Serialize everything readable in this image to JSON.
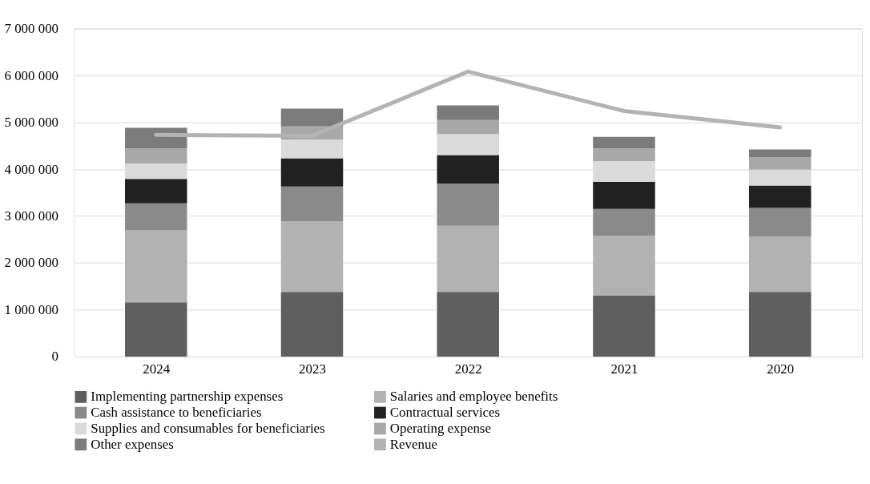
{
  "chart_data": {
    "type": "bar",
    "stacked": true,
    "categories": [
      "2024",
      "2023",
      "2022",
      "2021",
      "2020"
    ],
    "series": [
      {
        "name": "Implementing partnership expenses",
        "color": "#5f5f5f",
        "values": [
          1160000,
          1380000,
          1380000,
          1300000,
          1380000
        ]
      },
      {
        "name": "Salaries and employee benefits",
        "color": "#b2b2b2",
        "values": [
          1540000,
          1510000,
          1410000,
          1280000,
          1180000
        ]
      },
      {
        "name": "Cash assistance to beneficiaries",
        "color": "#8a8a8a",
        "values": [
          570000,
          740000,
          900000,
          570000,
          610000
        ]
      },
      {
        "name": "Contractual services",
        "color": "#222222",
        "values": [
          520000,
          600000,
          610000,
          580000,
          480000
        ]
      },
      {
        "name": "Supplies and consumables for beneficiaries",
        "color": "#dadada",
        "values": [
          330000,
          400000,
          450000,
          440000,
          340000
        ]
      },
      {
        "name": "Operating expense",
        "color": "#a8a8a8",
        "values": [
          320000,
          280000,
          300000,
          270000,
          260000
        ]
      },
      {
        "name": "Other expenses",
        "color": "#7b7b7b",
        "values": [
          440000,
          380000,
          310000,
          250000,
          170000
        ]
      },
      {
        "name": "Revenue",
        "type": "line",
        "color": "#b3b3b3",
        "values": [
          4730000,
          4710000,
          6080000,
          5240000,
          4890000
        ]
      }
    ],
    "ylim": [
      0,
      7000000
    ],
    "yticks": [
      0,
      {
        "value": 1000000,
        "label": "1 000 000"
      },
      {
        "value": 2000000,
        "label": "2 000 000"
      },
      {
        "value": 3000000,
        "label": "3 000 000"
      },
      {
        "value": 4000000,
        "label": "4 000 000"
      },
      {
        "value": 5000000,
        "label": "5 000 000"
      },
      {
        "value": 6000000,
        "label": "6 000 000"
      },
      {
        "value": 7000000,
        "label": "7 000 000"
      }
    ],
    "grid": "y",
    "legend": "bottom"
  }
}
